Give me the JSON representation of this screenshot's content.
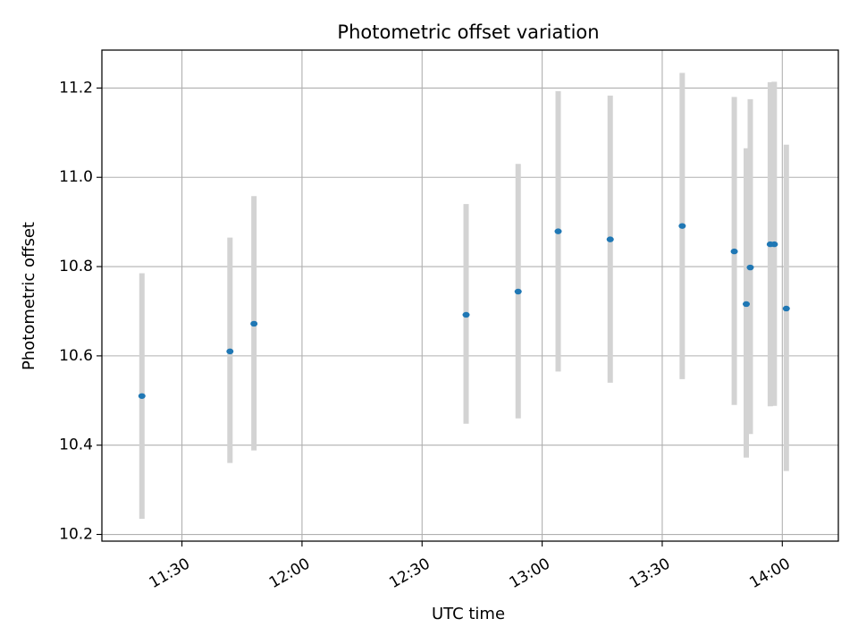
{
  "chart_data": {
    "type": "scatter",
    "title": "Photometric offset variation",
    "xlabel": "UTC time",
    "ylabel": "Photometric offset",
    "x_axis_type": "time",
    "xlim": [
      "11:10",
      "14:14"
    ],
    "ylim": [
      10.185,
      11.285
    ],
    "x_ticks": [
      "11:30",
      "12:00",
      "12:30",
      "13:00",
      "13:30",
      "14:00"
    ],
    "y_ticks": [
      10.2,
      10.4,
      10.6,
      10.8,
      11.0,
      11.2
    ],
    "grid": true,
    "marker_color": "#1f77b4",
    "errorbar_color": "#d3d3d3",
    "points": [
      {
        "x": "11:20",
        "y": 10.51,
        "ylow": 10.235,
        "yhigh": 10.785
      },
      {
        "x": "11:42",
        "y": 10.61,
        "ylow": 10.36,
        "yhigh": 10.865
      },
      {
        "x": "11:48",
        "y": 10.672,
        "ylow": 10.388,
        "yhigh": 10.958
      },
      {
        "x": "12:41",
        "y": 10.692,
        "ylow": 10.448,
        "yhigh": 10.94
      },
      {
        "x": "12:54",
        "y": 10.744,
        "ylow": 10.46,
        "yhigh": 11.03
      },
      {
        "x": "13:04",
        "y": 10.879,
        "ylow": 10.565,
        "yhigh": 11.193
      },
      {
        "x": "13:17",
        "y": 10.861,
        "ylow": 10.54,
        "yhigh": 11.183
      },
      {
        "x": "13:35",
        "y": 10.891,
        "ylow": 10.548,
        "yhigh": 11.234
      },
      {
        "x": "13:48",
        "y": 10.834,
        "ylow": 10.49,
        "yhigh": 11.18
      },
      {
        "x": "13:51",
        "y": 10.716,
        "ylow": 10.372,
        "yhigh": 11.065
      },
      {
        "x": "13:52",
        "y": 10.798,
        "ylow": 10.425,
        "yhigh": 11.175
      },
      {
        "x": "13:57",
        "y": 10.85,
        "ylow": 10.487,
        "yhigh": 11.213
      },
      {
        "x": "13:58",
        "y": 10.85,
        "ylow": 10.488,
        "yhigh": 11.214
      },
      {
        "x": "14:01",
        "y": 10.706,
        "ylow": 10.342,
        "yhigh": 11.073
      }
    ]
  }
}
